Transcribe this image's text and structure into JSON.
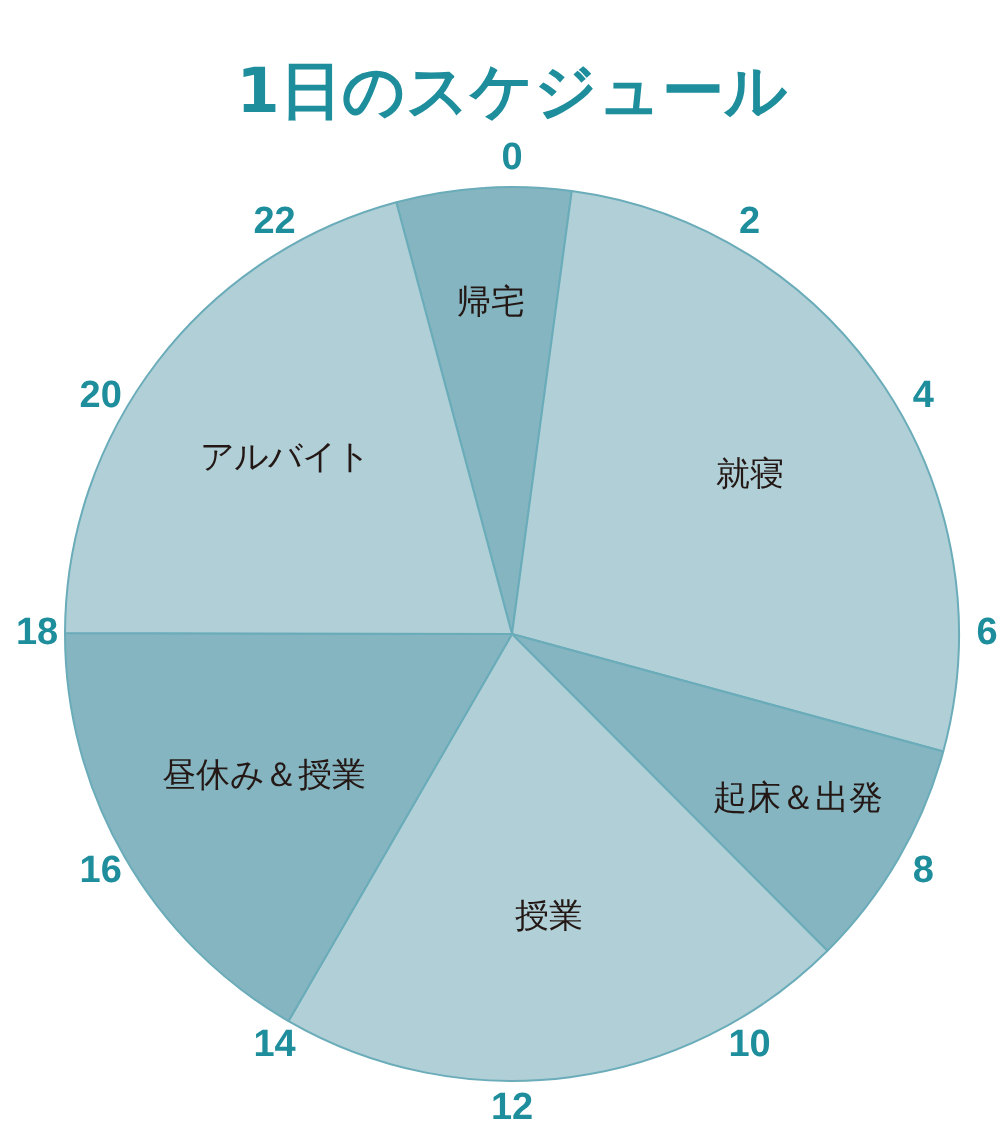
{
  "chart_data": {
    "type": "pie",
    "title": "1日のスケジュール",
    "categories": [
      "帰宅",
      "就寝",
      "起床＆出発",
      "授業",
      "昼休み＆授業",
      "アルバイト"
    ],
    "values": [
      6.3,
      27.1,
      8.3,
      20.8,
      16.7,
      20.8
    ],
    "colors": [
      "#85b5c0",
      "#b0cfd6",
      "#85b5c0",
      "#b0cfd6",
      "#85b5c0",
      "#b0cfd6"
    ],
    "annotations": [
      "0",
      "2",
      "4",
      "6",
      "8",
      "10",
      "12",
      "14",
      "16",
      "18",
      "20",
      "22"
    ]
  }
}
